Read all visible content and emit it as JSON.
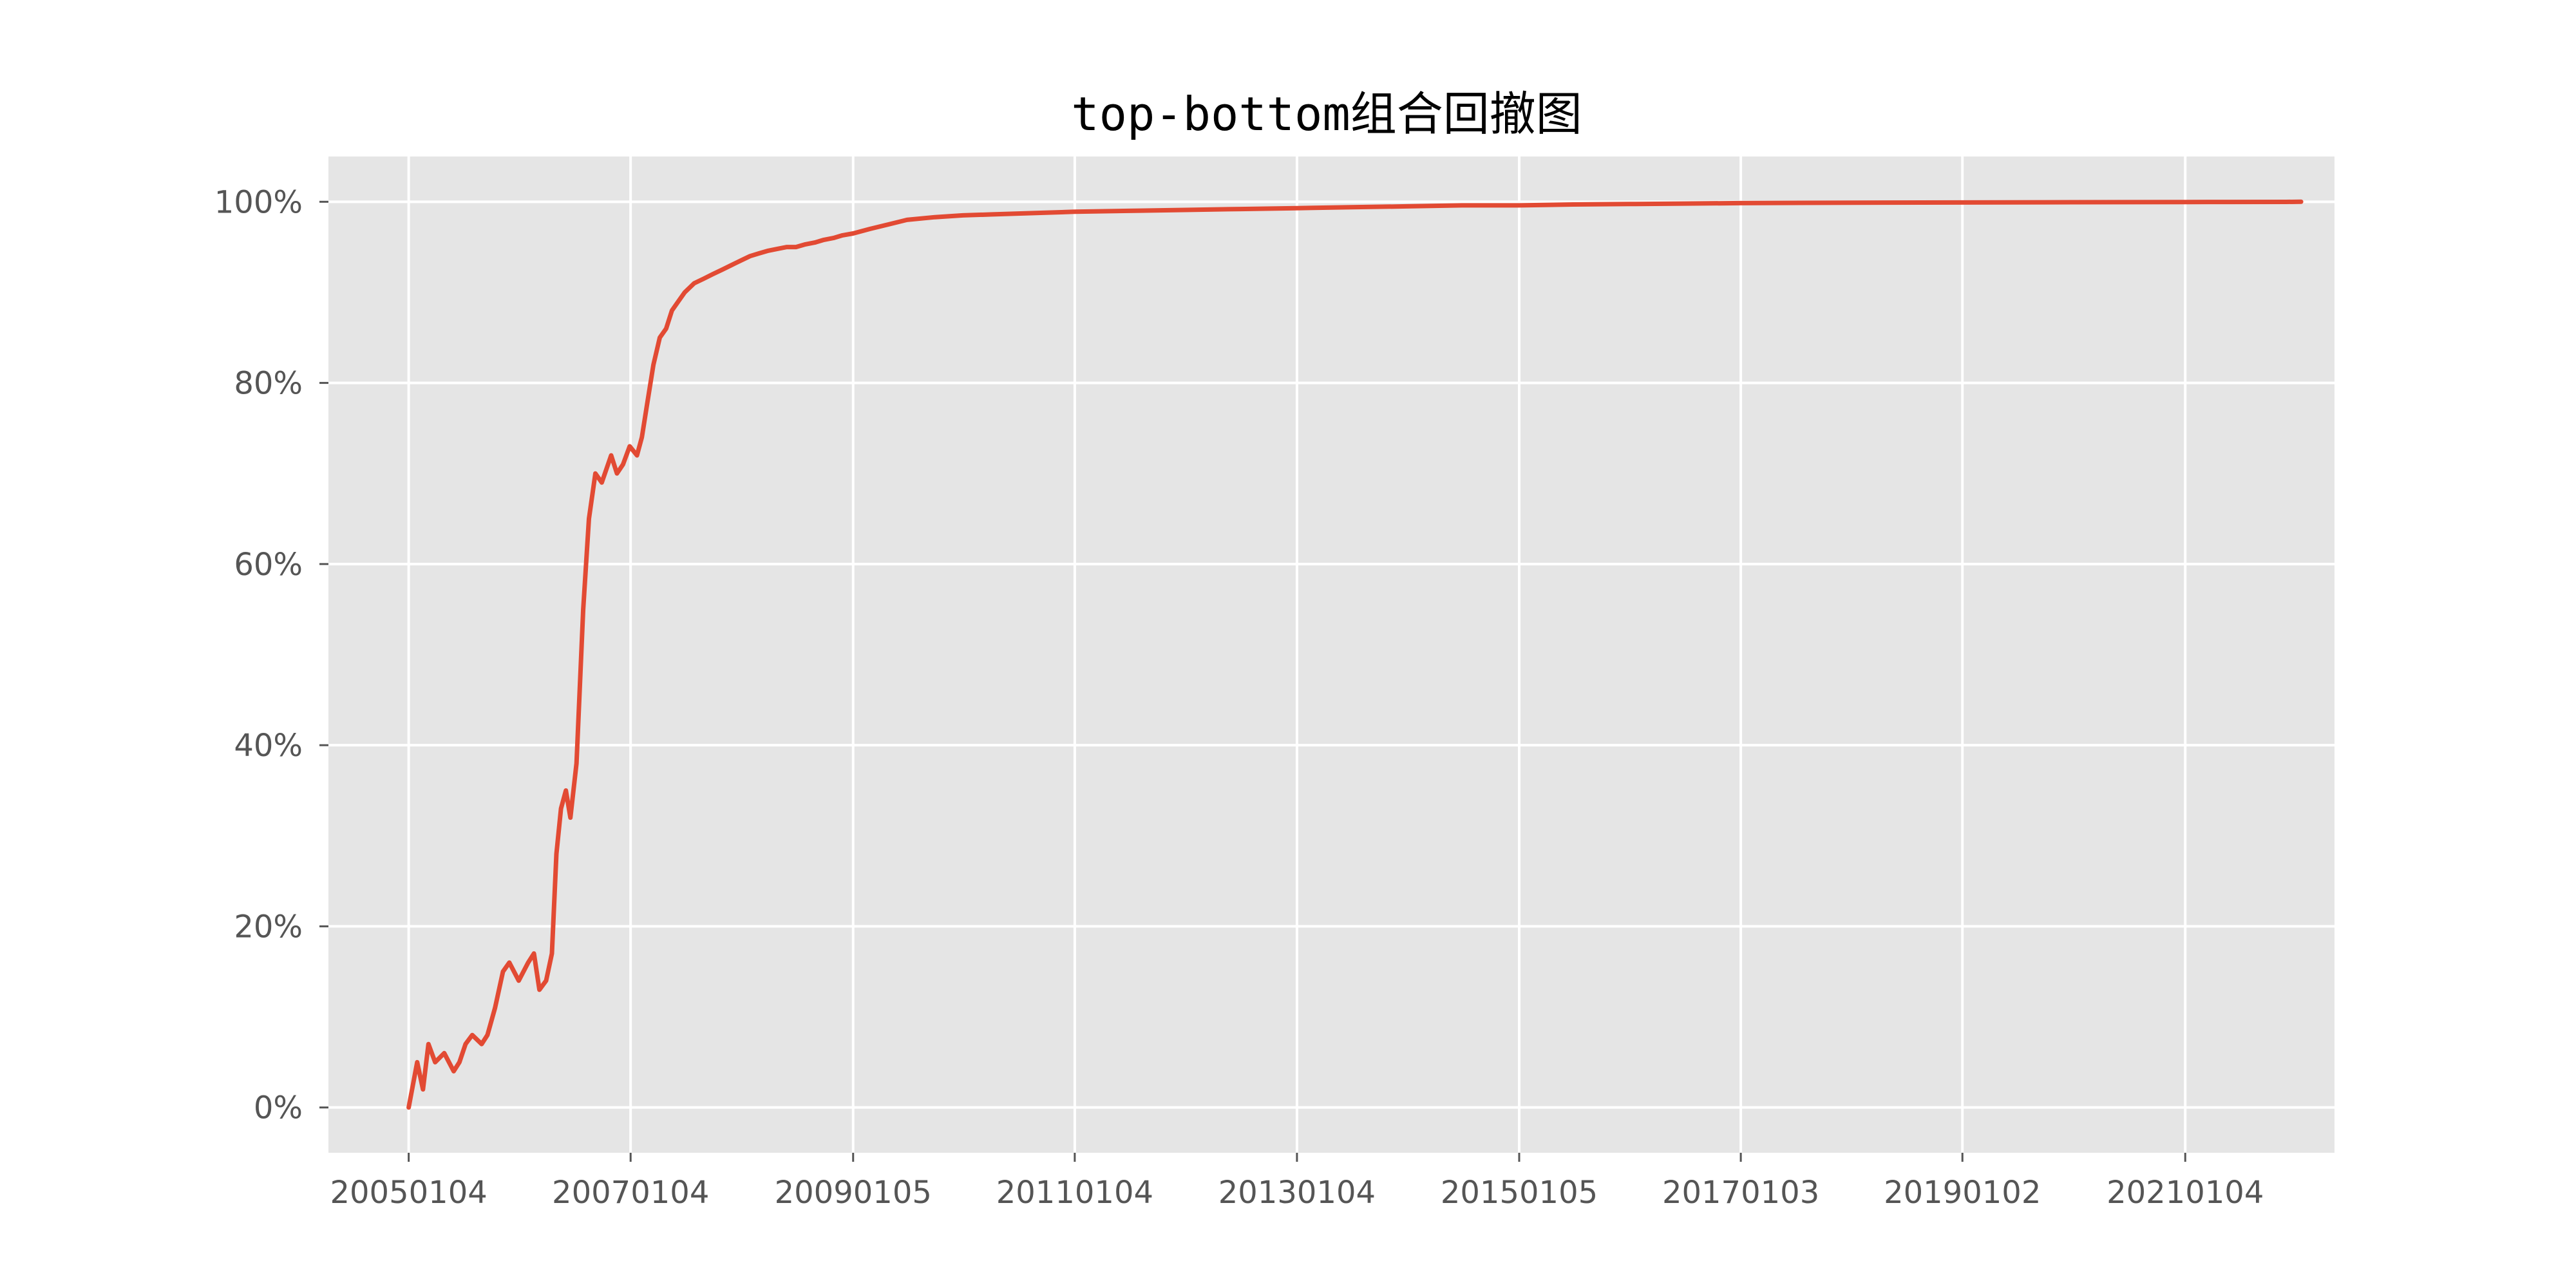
{
  "chart_data": {
    "type": "line",
    "title": "top-bottom组合回撤图",
    "xlabel": "",
    "ylabel": "",
    "x_tick_labels": [
      "20050104",
      "20070104",
      "20090105",
      "20110104",
      "20130104",
      "20150105",
      "20170103",
      "20190102",
      "20210104"
    ],
    "y_tick_labels": [
      "0%",
      "20%",
      "40%",
      "60%",
      "80%",
      "100%"
    ],
    "y_ticks": [
      0,
      20,
      40,
      60,
      80,
      100
    ],
    "ylim": [
      -5,
      105
    ],
    "xlim": [
      "2004-04-15",
      "2022-05-10"
    ],
    "grid": true,
    "legend": "none",
    "colors": {
      "background": "#e5e5e5",
      "grid": "#ffffff",
      "series": "#e24a33",
      "tick_label": "#555555"
    },
    "series": [
      {
        "x": [
          "2005-01-04",
          "2005-02-01",
          "2005-02-20",
          "2005-03-10",
          "2005-04-01",
          "2005-05-01",
          "2005-06-01",
          "2005-06-20",
          "2005-07-10",
          "2005-08-01",
          "2005-09-01",
          "2005-09-20",
          "2005-10-15",
          "2005-11-10",
          "2005-12-01",
          "2006-01-01",
          "2006-02-01",
          "2006-02-20",
          "2006-03-10",
          "2006-04-01",
          "2006-04-20",
          "2006-05-05",
          "2006-05-20",
          "2006-06-05",
          "2006-06-20",
          "2006-07-10",
          "2006-08-01",
          "2006-08-20",
          "2006-09-10",
          "2006-10-01",
          "2006-11-01",
          "2006-11-20",
          "2006-12-10",
          "2007-01-01",
          "2007-01-25",
          "2007-02-10",
          "2007-03-01",
          "2007-03-20",
          "2007-04-10",
          "2007-05-01",
          "2007-05-20",
          "2007-06-10",
          "2007-07-01",
          "2007-08-01",
          "2007-09-01",
          "2007-10-01",
          "2007-11-01",
          "2007-12-01",
          "2008-01-01",
          "2008-02-01",
          "2008-03-01",
          "2008-04-01",
          "2008-05-01",
          "2008-06-01",
          "2008-07-01",
          "2008-08-01",
          "2008-09-01",
          "2008-10-01",
          "2008-11-01",
          "2008-12-01",
          "2009-01-05",
          "2009-03-01",
          "2009-05-01",
          "2009-07-01",
          "2009-10-01",
          "2010-01-01",
          "2010-04-01",
          "2010-07-01",
          "2010-10-01",
          "2011-01-04",
          "2011-07-01",
          "2012-01-01",
          "2012-07-01",
          "2013-01-04",
          "2013-07-01",
          "2014-01-01",
          "2014-07-01",
          "2015-01-05",
          "2015-07-01",
          "2016-01-01",
          "2016-07-01",
          "2017-01-03",
          "2018-01-01",
          "2019-01-02",
          "2020-01-01",
          "2021-01-04",
          "2021-06-01",
          "2021-12-01",
          "2022-01-20"
        ],
        "values": [
          0,
          5,
          2,
          7,
          5,
          6,
          4,
          5,
          7,
          8,
          7,
          8,
          11,
          15,
          16,
          14,
          16,
          17,
          13,
          14,
          17,
          28,
          33,
          35,
          32,
          38,
          55,
          65,
          70,
          69,
          72,
          70,
          71,
          73,
          72,
          74,
          78,
          82,
          85,
          86,
          88,
          89,
          90,
          91,
          91.5,
          92,
          92.5,
          93,
          93.5,
          94,
          94.3,
          94.6,
          94.8,
          95,
          95,
          95.3,
          95.5,
          95.8,
          96,
          96.3,
          96.5,
          97,
          97.5,
          98,
          98.3,
          98.5,
          98.6,
          98.7,
          98.8,
          98.9,
          99,
          99.1,
          99.2,
          99.3,
          99.4,
          99.5,
          99.6,
          99.6,
          99.7,
          99.75,
          99.8,
          99.85,
          99.9,
          99.92,
          99.95,
          99.97,
          99.98,
          99.99,
          100
        ]
      }
    ]
  }
}
